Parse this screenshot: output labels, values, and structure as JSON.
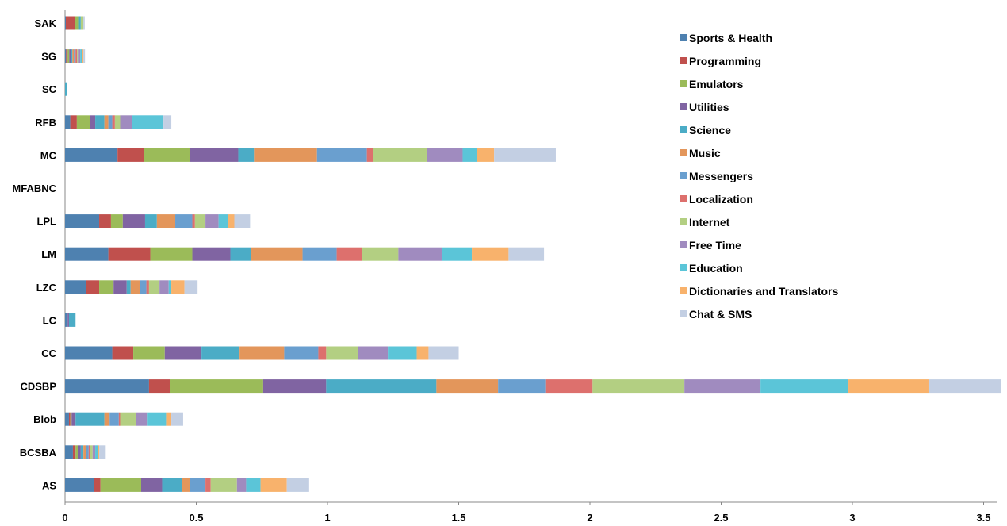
{
  "chart_data": {
    "type": "bar",
    "orientation": "horizontal",
    "stacked": true,
    "title": "",
    "xlabel": "",
    "ylabel": "",
    "xlim": [
      0,
      3.6
    ],
    "x_ticks": [
      "0",
      "0.5",
      "1",
      "1.5",
      "2",
      "2.5",
      "3",
      "3.5"
    ],
    "grid": false,
    "legend_position": "top-right",
    "categories": [
      "SAK",
      "SG",
      "SC",
      "RFB",
      "MC",
      "MFABNC",
      "LPL",
      "LM",
      "LZC",
      "LC",
      "CC",
      "CDSBP",
      "Blob",
      "BCSBA",
      "AS"
    ],
    "series": [
      {
        "name": "Sports & Health",
        "color": "#4e81b0",
        "values": [
          0.003,
          0.004,
          0.0,
          0.02,
          0.2,
          0.0,
          0.13,
          0.165,
          0.08,
          0.01,
          0.18,
          0.32,
          0.015,
          0.03,
          0.11
        ]
      },
      {
        "name": "Programming",
        "color": "#c0504d",
        "values": [
          0.035,
          0.006,
          0.0,
          0.025,
          0.1,
          0.0,
          0.045,
          0.16,
          0.05,
          0.0,
          0.08,
          0.08,
          0.005,
          0.01,
          0.025
        ]
      },
      {
        "name": "Emulators",
        "color": "#9bbb59",
        "values": [
          0.015,
          0.006,
          0.0,
          0.05,
          0.175,
          0.0,
          0.045,
          0.16,
          0.055,
          0.0,
          0.12,
          0.355,
          0.005,
          0.01,
          0.155
        ]
      },
      {
        "name": "Utilities",
        "color": "#8064a2",
        "values": [
          0.0,
          0.006,
          0.0,
          0.02,
          0.185,
          0.0,
          0.085,
          0.145,
          0.05,
          0.005,
          0.14,
          0.24,
          0.015,
          0.01,
          0.08
        ]
      },
      {
        "name": "Science",
        "color": "#4bacc6",
        "values": [
          0.007,
          0.006,
          0.008,
          0.035,
          0.06,
          0.0,
          0.045,
          0.08,
          0.015,
          0.025,
          0.145,
          0.42,
          0.11,
          0.01,
          0.075
        ]
      },
      {
        "name": "Music",
        "color": "#e3965b",
        "values": [
          0.0,
          0.006,
          0.0,
          0.015,
          0.24,
          0.0,
          0.07,
          0.195,
          0.035,
          0.0,
          0.17,
          0.235,
          0.02,
          0.01,
          0.03
        ]
      },
      {
        "name": "Messengers",
        "color": "#6a9fcf",
        "values": [
          0.0,
          0.006,
          0.0,
          0.015,
          0.19,
          0.0,
          0.065,
          0.13,
          0.025,
          0.0,
          0.13,
          0.18,
          0.035,
          0.01,
          0.06
        ]
      },
      {
        "name": "Localization",
        "color": "#dd706d",
        "values": [
          0.0,
          0.006,
          0.0,
          0.01,
          0.025,
          0.0,
          0.01,
          0.095,
          0.01,
          0.0,
          0.03,
          0.18,
          0.005,
          0.005,
          0.02
        ]
      },
      {
        "name": "Internet",
        "color": "#b3cf82",
        "values": [
          0.01,
          0.006,
          0.0,
          0.02,
          0.205,
          0.0,
          0.04,
          0.14,
          0.04,
          0.0,
          0.12,
          0.35,
          0.06,
          0.01,
          0.1
        ]
      },
      {
        "name": "Free Time",
        "color": "#a08bbf",
        "values": [
          0.0,
          0.006,
          0.0,
          0.045,
          0.135,
          0.0,
          0.05,
          0.165,
          0.035,
          0.0,
          0.115,
          0.29,
          0.045,
          0.01,
          0.035
        ]
      },
      {
        "name": "Education",
        "color": "#5bc5d8",
        "values": [
          0.0,
          0.006,
          0.0,
          0.12,
          0.055,
          0.0,
          0.035,
          0.115,
          0.01,
          0.0,
          0.11,
          0.335,
          0.07,
          0.01,
          0.055
        ]
      },
      {
        "name": "Dictionaries and Translators",
        "color": "#f8b26c",
        "values": [
          0.0,
          0.006,
          0.0,
          0.0,
          0.065,
          0.0,
          0.025,
          0.14,
          0.05,
          0.0,
          0.045,
          0.305,
          0.02,
          0.005,
          0.1
        ]
      },
      {
        "name": "Chat & SMS",
        "color": "#c3cfe3",
        "values": [
          0.005,
          0.006,
          0.0,
          0.03,
          0.235,
          0.0,
          0.06,
          0.135,
          0.05,
          0.0,
          0.115,
          0.275,
          0.045,
          0.025,
          0.085
        ]
      }
    ]
  }
}
